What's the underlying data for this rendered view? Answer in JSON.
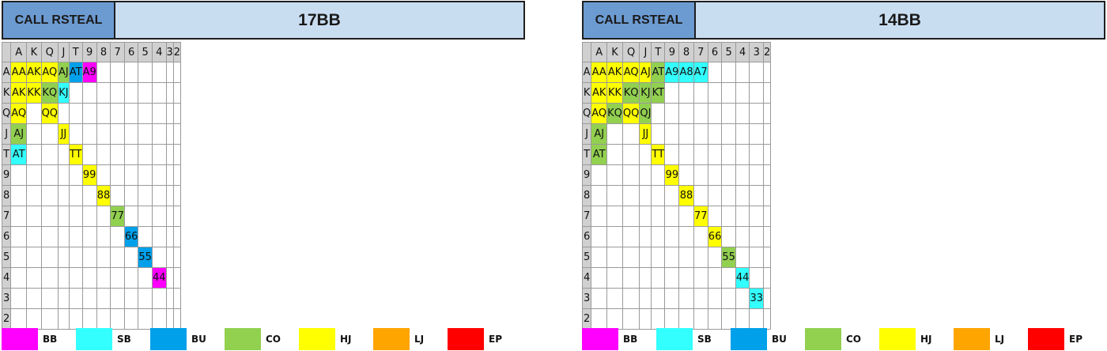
{
  "colors": {
    "BB": "#ff00ff",
    "SB": "#33ffff",
    "BU": "#00a0ea",
    "CO": "#92d050",
    "HJ": "#ffff00",
    "LJ": "#ffa500",
    "EP": "#ff0000"
  },
  "ranks": [
    "A",
    "K",
    "Q",
    "J",
    "T",
    "9",
    "8",
    "7",
    "6",
    "5",
    "4",
    "3",
    "2"
  ],
  "legend": [
    "BB",
    "SB",
    "BU",
    "CO",
    "HJ",
    "LJ",
    "EP"
  ],
  "charts": [
    {
      "label": "CALL RSTEAL",
      "title": "17BB",
      "cells": [
        {
          "r": 0,
          "c": 0,
          "text": "AA",
          "pos": "HJ"
        },
        {
          "r": 0,
          "c": 1,
          "text": "AK",
          "pos": "HJ"
        },
        {
          "r": 0,
          "c": 2,
          "text": "AQ",
          "pos": "HJ"
        },
        {
          "r": 0,
          "c": 3,
          "text": "AJ",
          "pos": "CO"
        },
        {
          "r": 0,
          "c": 4,
          "text": "AT",
          "pos": "BU"
        },
        {
          "r": 0,
          "c": 5,
          "text": "A9",
          "pos": "BB"
        },
        {
          "r": 1,
          "c": 0,
          "text": "AK",
          "pos": "HJ"
        },
        {
          "r": 1,
          "c": 1,
          "text": "KK",
          "pos": "HJ"
        },
        {
          "r": 1,
          "c": 2,
          "text": "KQ",
          "pos": "CO"
        },
        {
          "r": 1,
          "c": 3,
          "text": "KJ",
          "pos": "SB"
        },
        {
          "r": 2,
          "c": 0,
          "text": "AQ",
          "pos": "HJ"
        },
        {
          "r": 2,
          "c": 2,
          "text": "QQ",
          "pos": "HJ"
        },
        {
          "r": 3,
          "c": 0,
          "text": "AJ",
          "pos": "CO"
        },
        {
          "r": 3,
          "c": 3,
          "text": "JJ",
          "pos": "HJ"
        },
        {
          "r": 4,
          "c": 0,
          "text": "AT",
          "pos": "SB"
        },
        {
          "r": 4,
          "c": 4,
          "text": "TT",
          "pos": "HJ"
        },
        {
          "r": 5,
          "c": 5,
          "text": "99",
          "pos": "HJ"
        },
        {
          "r": 6,
          "c": 6,
          "text": "88",
          "pos": "HJ"
        },
        {
          "r": 7,
          "c": 7,
          "text": "77",
          "pos": "CO"
        },
        {
          "r": 8,
          "c": 8,
          "text": "66",
          "pos": "BU"
        },
        {
          "r": 9,
          "c": 9,
          "text": "55",
          "pos": "BU"
        },
        {
          "r": 10,
          "c": 10,
          "text": "44",
          "pos": "BB"
        }
      ]
    },
    {
      "label": "CALL RSTEAL",
      "title": "14BB",
      "cells": [
        {
          "r": 0,
          "c": 0,
          "text": "AA",
          "pos": "HJ"
        },
        {
          "r": 0,
          "c": 1,
          "text": "AK",
          "pos": "HJ"
        },
        {
          "r": 0,
          "c": 2,
          "text": "AQ",
          "pos": "HJ"
        },
        {
          "r": 0,
          "c": 3,
          "text": "AJ",
          "pos": "HJ"
        },
        {
          "r": 0,
          "c": 4,
          "text": "AT",
          "pos": "CO"
        },
        {
          "r": 0,
          "c": 5,
          "text": "A9",
          "pos": "SB"
        },
        {
          "r": 0,
          "c": 6,
          "text": "A8",
          "pos": "SB"
        },
        {
          "r": 0,
          "c": 7,
          "text": "A7",
          "pos": "SB"
        },
        {
          "r": 1,
          "c": 0,
          "text": "AK",
          "pos": "HJ"
        },
        {
          "r": 1,
          "c": 1,
          "text": "KK",
          "pos": "HJ"
        },
        {
          "r": 1,
          "c": 2,
          "text": "KQ",
          "pos": "CO"
        },
        {
          "r": 1,
          "c": 3,
          "text": "KJ",
          "pos": "CO"
        },
        {
          "r": 1,
          "c": 4,
          "text": "KT",
          "pos": "CO"
        },
        {
          "r": 2,
          "c": 0,
          "text": "AQ",
          "pos": "HJ"
        },
        {
          "r": 2,
          "c": 1,
          "text": "KQ",
          "pos": "CO"
        },
        {
          "r": 2,
          "c": 2,
          "text": "QQ",
          "pos": "HJ"
        },
        {
          "r": 2,
          "c": 3,
          "text": "QJ",
          "pos": "CO"
        },
        {
          "r": 3,
          "c": 0,
          "text": "AJ",
          "pos": "CO"
        },
        {
          "r": 3,
          "c": 3,
          "text": "JJ",
          "pos": "HJ"
        },
        {
          "r": 4,
          "c": 0,
          "text": "AT",
          "pos": "CO"
        },
        {
          "r": 4,
          "c": 4,
          "text": "TT",
          "pos": "HJ"
        },
        {
          "r": 5,
          "c": 5,
          "text": "99",
          "pos": "HJ"
        },
        {
          "r": 6,
          "c": 6,
          "text": "88",
          "pos": "HJ"
        },
        {
          "r": 7,
          "c": 7,
          "text": "77",
          "pos": "HJ"
        },
        {
          "r": 8,
          "c": 8,
          "text": "66",
          "pos": "HJ"
        },
        {
          "r": 9,
          "c": 9,
          "text": "55",
          "pos": "CO"
        },
        {
          "r": 10,
          "c": 10,
          "text": "44",
          "pos": "SB"
        },
        {
          "r": 11,
          "c": 11,
          "text": "33",
          "pos": "SB"
        }
      ]
    }
  ]
}
